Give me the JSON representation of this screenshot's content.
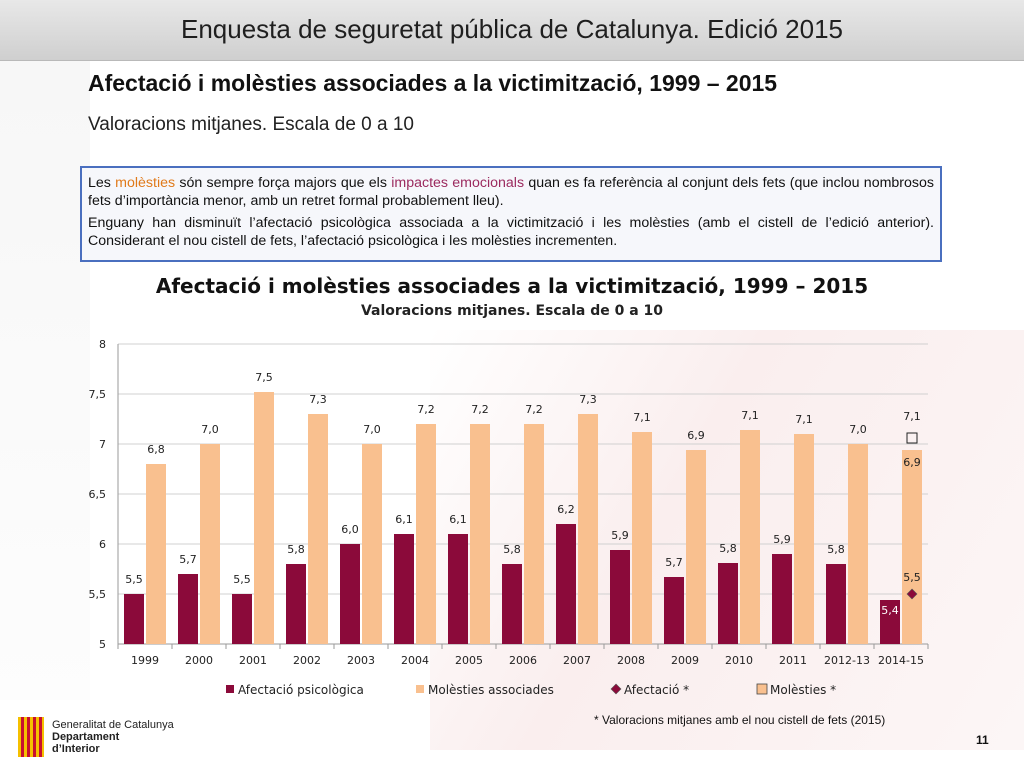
{
  "header": {
    "title": "Enquesta de seguretat pública de Catalunya. Edició 2015"
  },
  "slide": {
    "title": "Afectació i molèsties associades a la victimització, 1999 – 2015",
    "subtitle": "Valoracions mitjanes. Escala de 0 a 10"
  },
  "infobox": {
    "p1": [
      "Les ",
      "molèsties",
      " són sempre força majors que els ",
      "impactes emocionals",
      " quan es fa referència al conjunt dels fets (que inclou nombrosos fets d’importància menor, amb un retret formal probablement lleu)."
    ],
    "p2": "Enguany han disminuït l’afectació psicològica associada a la victimització i les molèsties (amb el cistell de l’edició anterior). Considerant el nou cistell de fets, l’afectació psicològica i les molèsties incrementen."
  },
  "colors": {
    "afectacio": "#8b0a3a",
    "molesties": "#f9c08f",
    "grid": "#d0d0d0",
    "axis": "#9a9a9a"
  },
  "chart_data": {
    "type": "bar",
    "title": "Afectació i molèsties associades a la victimització, 1999 – 2015",
    "subtitle": "Valoracions mitjanes. Escala de 0 a 10",
    "categories": [
      "1999",
      "2000",
      "2001",
      "2002",
      "2003",
      "2004",
      "2005",
      "2006",
      "2007",
      "2008",
      "2009",
      "2010",
      "2011",
      "2012-13",
      "2014-15"
    ],
    "ylim": [
      5,
      8
    ],
    "yticks": [
      "5",
      "5,5",
      "6",
      "6,5",
      "7",
      "7,5",
      "8"
    ],
    "grid": true,
    "legend_position": "bottom",
    "series": [
      {
        "name": "Afectació psicològica",
        "values": [
          5.5,
          5.7,
          5.5,
          5.8,
          6.0,
          6.1,
          6.1,
          5.8,
          6.2,
          5.94,
          5.67,
          5.81,
          5.9,
          5.8,
          5.44
        ],
        "labels": [
          "5,5",
          "5,7",
          "5,5",
          "5,8",
          "6,0",
          "6,1",
          "6,1",
          "5,8",
          "6,2",
          "5,9",
          "5,7",
          "5,8",
          "5,9",
          "5,8",
          "5,4"
        ]
      },
      {
        "name": "Molèsties associades",
        "values": [
          6.8,
          7.0,
          7.52,
          7.3,
          7.0,
          7.2,
          7.2,
          7.2,
          7.3,
          7.12,
          6.94,
          7.14,
          7.1,
          7.0,
          6.94
        ],
        "labels": [
          "6,8",
          "7,0",
          "7,5",
          "7,3",
          "7,0",
          "7,2",
          "7,2",
          "7,2",
          "7,3",
          "7,1",
          "6,9",
          "7,1",
          "7,1",
          "7,0",
          "6,9"
        ]
      },
      {
        "name": "Afectació *",
        "marker": "diamond",
        "category": "2014-15",
        "value": 5.5,
        "label": "5,5"
      },
      {
        "name": "Molèsties *",
        "marker": "square",
        "category": "2014-15",
        "value": 7.06,
        "label": "7,1"
      }
    ]
  },
  "footnote": "* Valoracions mitjanes amb  el nou cistell de fets (2015)",
  "page_number": "11",
  "logo": {
    "line1": "Generalitat de Catalunya",
    "line2": "Departament",
    "line3": "d’Interior"
  }
}
